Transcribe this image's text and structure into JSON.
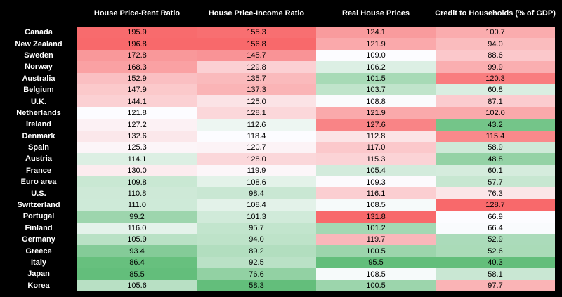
{
  "table": {
    "columns": [
      "House Price-Rent Ratio",
      "House Price-Income Ratio",
      "Real House Prices",
      "Credit to Households (% of GDP)"
    ],
    "rows": [
      {
        "label": "Canada",
        "cells": [
          "195.9",
          "155.3",
          "124.1",
          "100.7"
        ]
      },
      {
        "label": "New Zealand",
        "cells": [
          "196.8",
          "156.8",
          "121.9",
          "94.0"
        ]
      },
      {
        "label": "Sweden",
        "cells": [
          "172.8",
          "145.7",
          "109.0",
          "88.6"
        ]
      },
      {
        "label": "Norway",
        "cells": [
          "168.3",
          "129.8",
          "106.2",
          "99.9"
        ]
      },
      {
        "label": "Australia",
        "cells": [
          "152.9",
          "135.7",
          "101.5",
          "120.3"
        ]
      },
      {
        "label": "Belgium",
        "cells": [
          "147.9",
          "137.3",
          "103.7",
          "60.8"
        ]
      },
      {
        "label": "U.K.",
        "cells": [
          "144.1",
          "125.0",
          "108.8",
          "87.1"
        ]
      },
      {
        "label": "Netherlands",
        "cells": [
          "121.8",
          "128.1",
          "121.9",
          "102.0"
        ]
      },
      {
        "label": "Ireland",
        "cells": [
          "127.2",
          "112.6",
          "127.6",
          "43.2"
        ]
      },
      {
        "label": "Denmark",
        "cells": [
          "132.6",
          "118.4",
          "112.8",
          "115.4"
        ]
      },
      {
        "label": "Spain",
        "cells": [
          "125.3",
          "120.7",
          "117.0",
          "58.9"
        ]
      },
      {
        "label": "Austria",
        "cells": [
          "114.1",
          "128.0",
          "115.3",
          "48.8"
        ]
      },
      {
        "label": "France",
        "cells": [
          "130.0",
          "119.9",
          "105.4",
          "60.1"
        ]
      },
      {
        "label": "Euro area",
        "cells": [
          "109.8",
          "108.6",
          "109.3",
          "57.7"
        ]
      },
      {
        "label": "U.S.",
        "cells": [
          "110.8",
          "98.4",
          "116.1",
          "76.3"
        ]
      },
      {
        "label": "Switzerland",
        "cells": [
          "111.0",
          "108.4",
          "108.5",
          "128.7"
        ]
      },
      {
        "label": "Portugal",
        "cells": [
          "99.2",
          "101.3",
          "131.8",
          "66.9"
        ]
      },
      {
        "label": "Finland",
        "cells": [
          "116.0",
          "95.7",
          "101.2",
          "66.4"
        ]
      },
      {
        "label": "Germany",
        "cells": [
          "105.9",
          "94.0",
          "119.7",
          "52.9"
        ]
      },
      {
        "label": "Greece",
        "cells": [
          "93.4",
          "89.2",
          "100.5",
          "52.6"
        ]
      },
      {
        "label": "Italy",
        "cells": [
          "86.4",
          "92.5",
          "95.5",
          "40.3"
        ]
      },
      {
        "label": "Japan",
        "cells": [
          "85.5",
          "76.6",
          "108.5",
          "58.1"
        ]
      },
      {
        "label": "Korea",
        "cells": [
          "105.6",
          "58.3",
          "100.5",
          "97.7"
        ]
      }
    ]
  }
}
